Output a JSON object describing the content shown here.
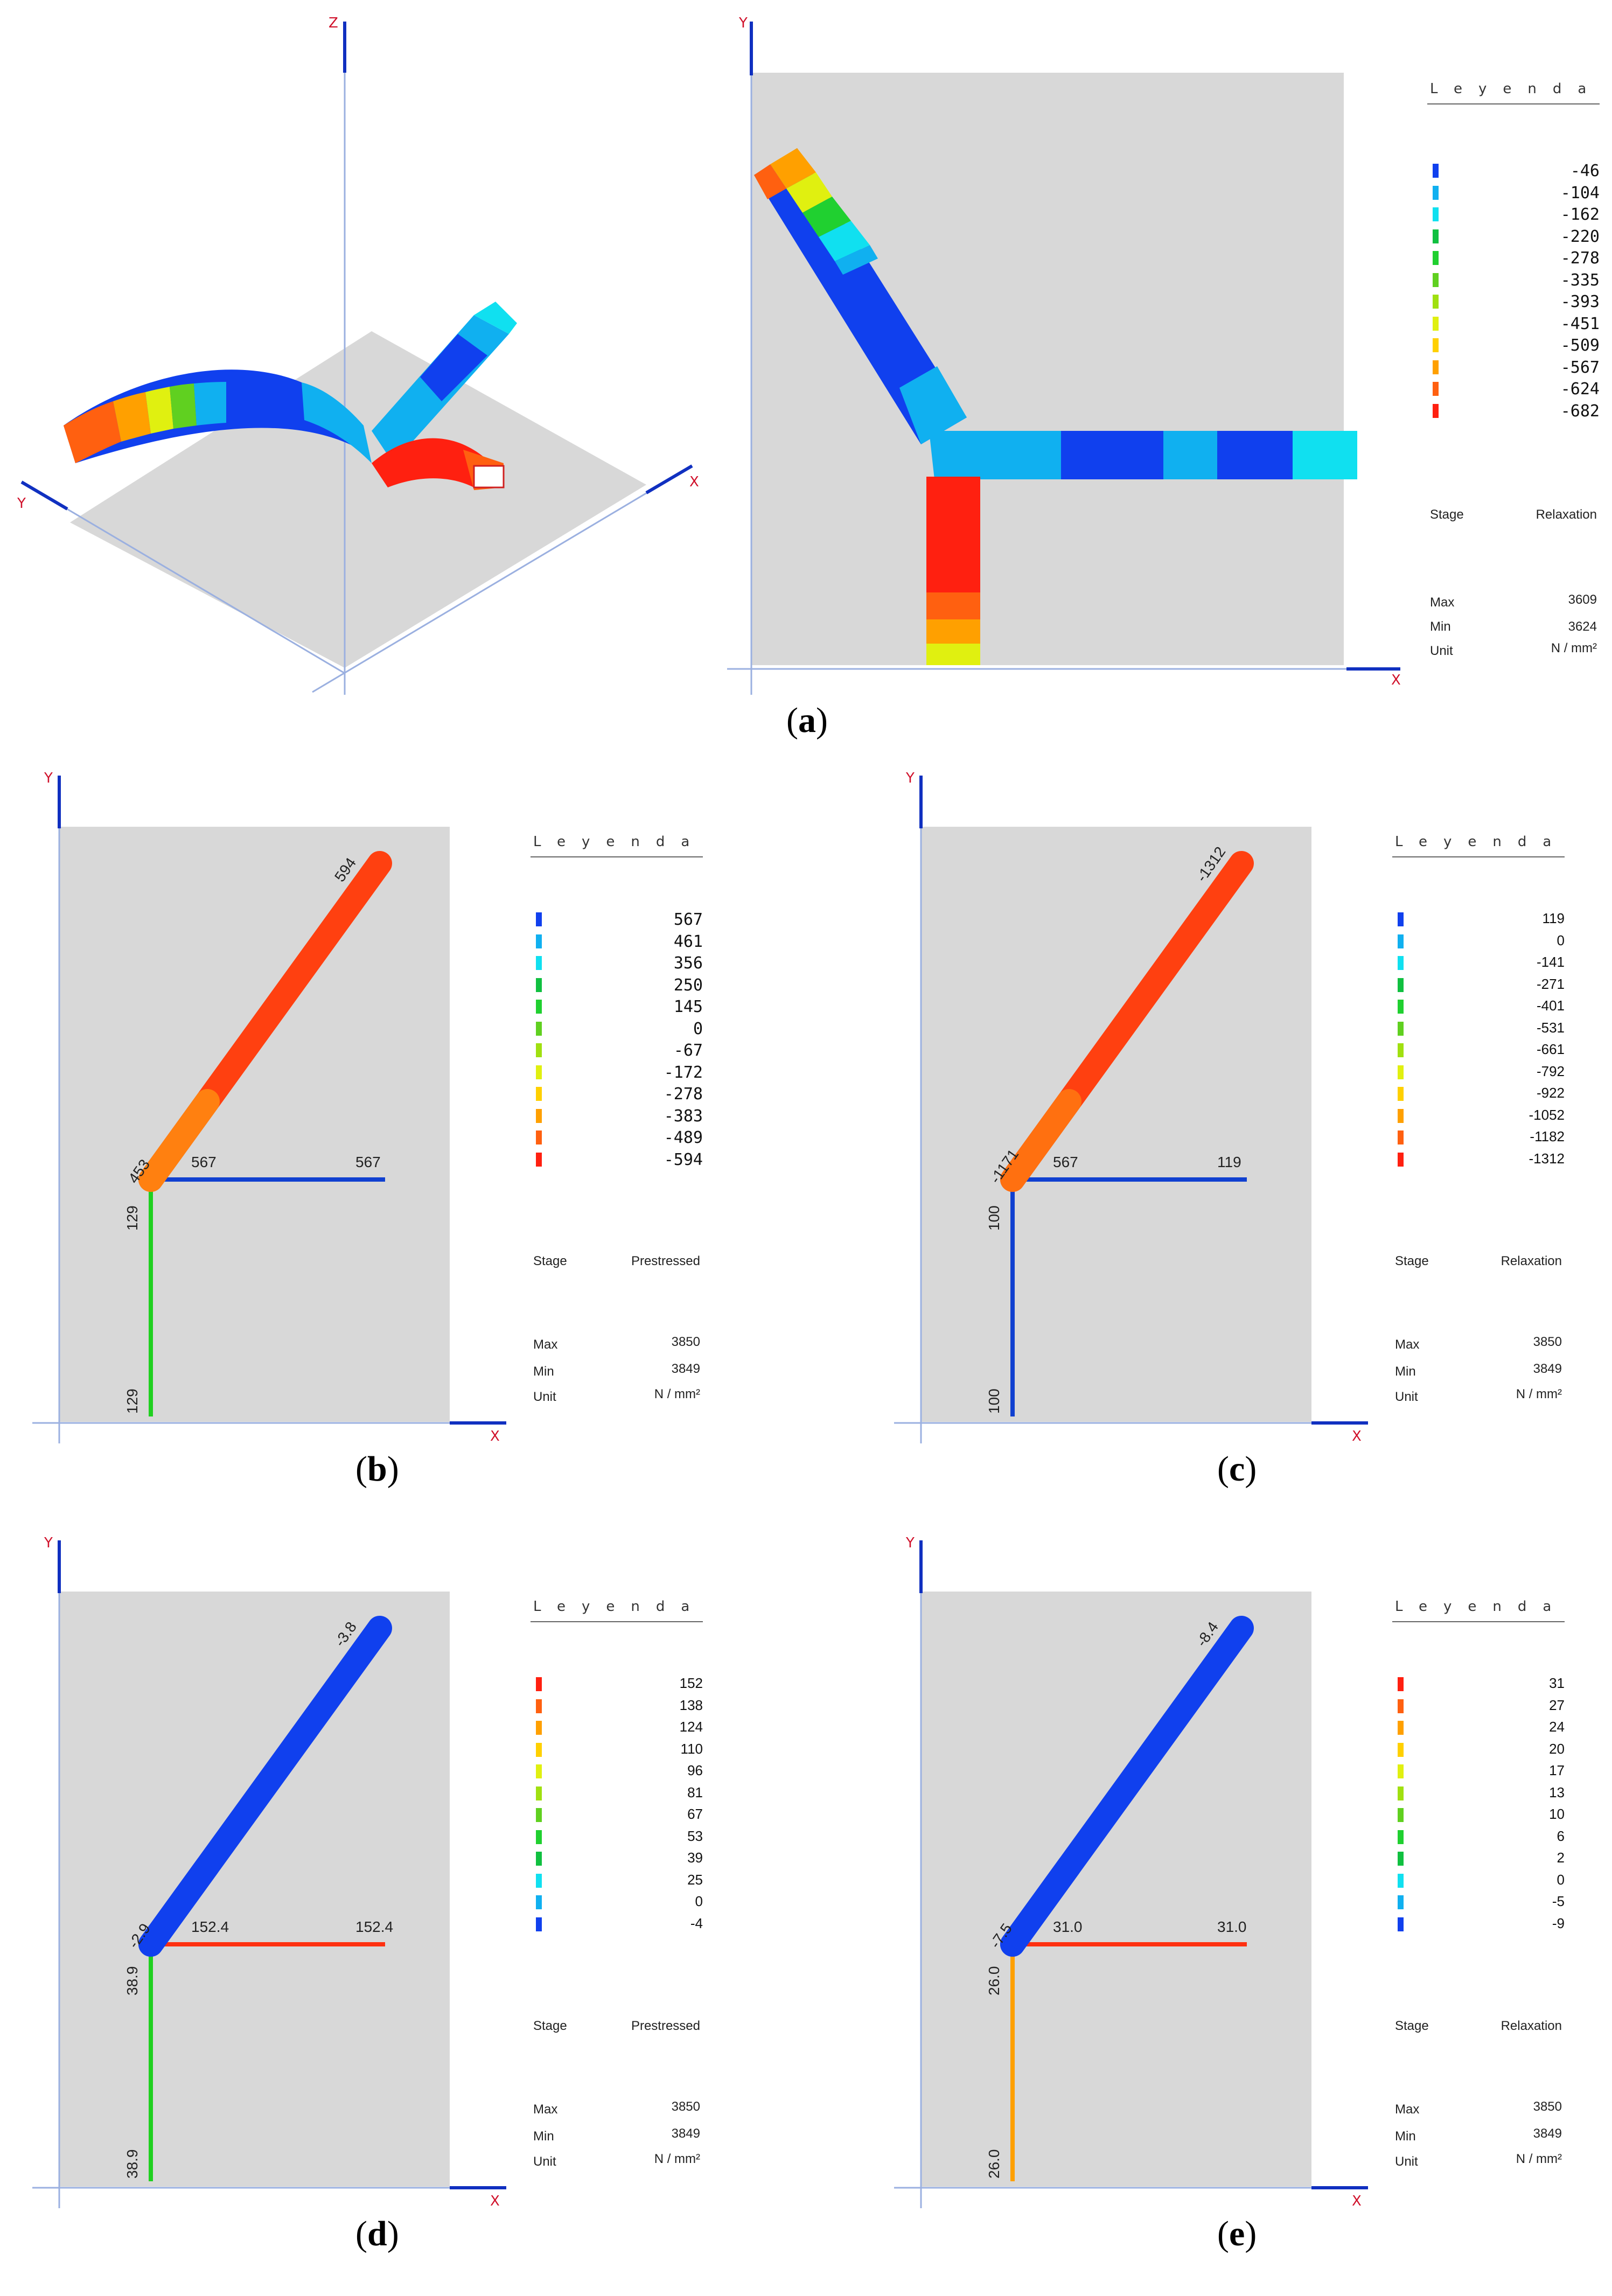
{
  "axes": {
    "x": "X",
    "y": "Y",
    "z": "Z"
  },
  "legend_title": "Leyenda",
  "labels": {
    "stage": "Stage",
    "max": "Max",
    "min": "Min",
    "unit": "Unit"
  },
  "panels": {
    "a": {
      "label": "a",
      "legend_values": [
        "-46",
        "-104",
        "-162",
        "-220",
        "-278",
        "-335",
        "-393",
        "-451",
        "-509",
        "-567",
        "-624",
        "-682"
      ],
      "legend_colors": [
        "#1040ee",
        "#10b0f0",
        "#10e0f0",
        "#10c040",
        "#20d030",
        "#60d020",
        "#a0e010",
        "#e0f010",
        "#ffd000",
        "#ffa000",
        "#ff6010",
        "#ff2010"
      ],
      "stage": "Relaxation",
      "max": "3609",
      "min": "3624",
      "unit": "N / mm²"
    },
    "b": {
      "label": "b",
      "legend_values": [
        "567",
        "461",
        "356",
        "250",
        "145",
        "0",
        "-67",
        "-172",
        "-278",
        "-383",
        "-489",
        "-594"
      ],
      "legend_colors": [
        "#1040ee",
        "#10b0f0",
        "#10e0f0",
        "#10c040",
        "#20d030",
        "#60d020",
        "#a0e010",
        "#e0f010",
        "#ffd000",
        "#ffa000",
        "#ff6010",
        "#ff2010"
      ],
      "stage": "Prestressed",
      "max": "3850",
      "min": "3849",
      "unit": "N / mm²",
      "bar_values": {
        "diag_top": "594",
        "diag_bottom": "453",
        "h_left": "567",
        "h_right": "567",
        "v_top": "129",
        "v_bottom": "129"
      },
      "colors": {
        "diag_main": "#ff4010",
        "diag_end": "#ff8010",
        "horizontal": "#1040d0",
        "vertical": "#20d020"
      }
    },
    "c": {
      "label": "c",
      "legend_values": [
        "119",
        "0",
        "-141",
        "-271",
        "-401",
        "-531",
        "-661",
        "-792",
        "-922",
        "-1052",
        "-1182",
        "-1312"
      ],
      "legend_colors": [
        "#1040ee",
        "#10b0f0",
        "#10e0f0",
        "#10c040",
        "#20d030",
        "#60d020",
        "#a0e010",
        "#e0f010",
        "#ffd000",
        "#ffa000",
        "#ff6010",
        "#ff2010"
      ],
      "stage": "Relaxation",
      "max": "3850",
      "min": "3849",
      "unit": "N / mm²",
      "bar_values": {
        "diag_top": "-1312",
        "diag_bottom": "-1171",
        "h_left": "567",
        "h_right": "119",
        "v_top": "100",
        "v_bottom": "100"
      },
      "colors": {
        "diag_main": "#ff4010",
        "diag_end": "#ff7010",
        "horizontal": "#1040d0",
        "vertical": "#1040d0"
      }
    },
    "d": {
      "label": "d",
      "legend_values": [
        "152",
        "138",
        "124",
        "110",
        "96",
        "81",
        "67",
        "53",
        "39",
        "25",
        "0",
        "-4"
      ],
      "legend_colors": [
        "#ff2010",
        "#ff6010",
        "#ffa000",
        "#ffd000",
        "#e0f010",
        "#a0e010",
        "#60d020",
        "#20d030",
        "#10c040",
        "#10e0f0",
        "#10b0f0",
        "#1040ee"
      ],
      "stage": "Prestressed",
      "max": "3850",
      "min": "3849",
      "unit": "N / mm²",
      "bar_values": {
        "diag_top": "-3.8",
        "diag_bottom": "-2.9",
        "h_left": "152.4",
        "h_right": "152.4",
        "v_top": "38.9",
        "v_bottom": "38.9"
      },
      "colors": {
        "diag_main": "#1040ee",
        "diag_end": "#1040ee",
        "horizontal": "#ff3010",
        "vertical": "#20d020"
      }
    },
    "e": {
      "label": "e",
      "legend_values": [
        "31",
        "27",
        "24",
        "20",
        "17",
        "13",
        "10",
        "6",
        "2",
        "0",
        "-5",
        "-9"
      ],
      "legend_colors": [
        "#ff2010",
        "#ff6010",
        "#ffa000",
        "#ffd000",
        "#e0f010",
        "#a0e010",
        "#60d020",
        "#20d030",
        "#10c040",
        "#10e0f0",
        "#10b0f0",
        "#1040ee"
      ],
      "stage": "Relaxation",
      "max": "3850",
      "min": "3849",
      "unit": "N / mm²",
      "bar_values": {
        "diag_top": "-8.4",
        "diag_bottom": "-7.5",
        "h_left": "31.0",
        "h_right": "31.0",
        "v_top": "26.0",
        "v_bottom": "26.0"
      },
      "colors": {
        "diag_main": "#1040ee",
        "diag_end": "#1040ee",
        "horizontal": "#ff3010",
        "vertical": "#ffa000"
      }
    }
  }
}
